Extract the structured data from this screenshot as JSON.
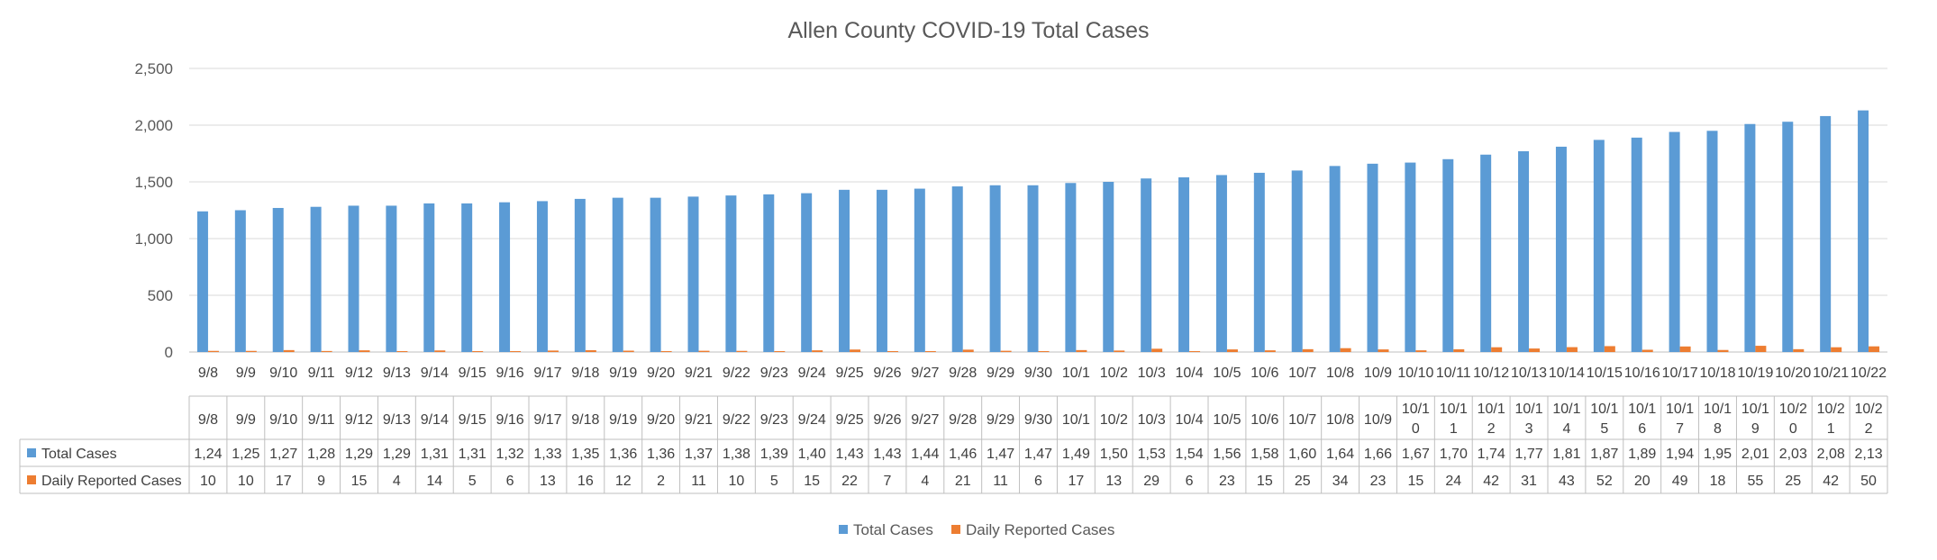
{
  "chart_data": {
    "type": "bar",
    "title": "Allen County COVID-19 Total Cases",
    "xlabel": "",
    "ylabel": "",
    "ylim": [
      0,
      2500
    ],
    "yticks": [
      0,
      500,
      1000,
      1500,
      2000,
      2500
    ],
    "ytick_labels": [
      "0",
      "500",
      "1,000",
      "1,500",
      "2,000",
      "2,500"
    ],
    "grid": true,
    "legend_position": "bottom",
    "categories": [
      "9/8",
      "9/9",
      "9/10",
      "9/11",
      "9/12",
      "9/13",
      "9/14",
      "9/15",
      "9/16",
      "9/17",
      "9/18",
      "9/19",
      "9/20",
      "9/21",
      "9/22",
      "9/23",
      "9/24",
      "9/25",
      "9/26",
      "9/27",
      "9/28",
      "9/29",
      "9/30",
      "10/1",
      "10/2",
      "10/3",
      "10/4",
      "10/5",
      "10/6",
      "10/7",
      "10/8",
      "10/9",
      "10/10",
      "10/11",
      "10/12",
      "10/13",
      "10/14",
      "10/15",
      "10/16",
      "10/17",
      "10/18",
      "10/19",
      "10/20",
      "10/21",
      "10/22"
    ],
    "table_header_labels": [
      "9/8",
      "9/9",
      "9/10",
      "9/11",
      "9/12",
      "9/13",
      "9/14",
      "9/15",
      "9/16",
      "9/17",
      "9/18",
      "9/19",
      "9/20",
      "9/21",
      "9/22",
      "9/23",
      "9/24",
      "9/25",
      "9/26",
      "9/27",
      "9/28",
      "9/29",
      "9/30",
      "10/1",
      "10/2",
      "10/3",
      "10/4",
      "10/5",
      "10/6",
      "10/7",
      "10/8",
      "10/9",
      "10/1\n0",
      "10/1\n1",
      "10/1\n2",
      "10/1\n3",
      "10/1\n4",
      "10/1\n5",
      "10/1\n6",
      "10/1\n7",
      "10/1\n8",
      "10/1\n9",
      "10/2\n0",
      "10/2\n1",
      "10/2\n2"
    ],
    "series": [
      {
        "name": "Total Cases",
        "color": "#5B9BD5",
        "values": [
          1240,
          1250,
          1270,
          1280,
          1290,
          1290,
          1310,
          1310,
          1320,
          1330,
          1350,
          1360,
          1360,
          1370,
          1380,
          1390,
          1400,
          1430,
          1430,
          1440,
          1460,
          1470,
          1470,
          1490,
          1500,
          1530,
          1540,
          1560,
          1580,
          1600,
          1640,
          1660,
          1670,
          1700,
          1740,
          1770,
          1810,
          1870,
          1890,
          1940,
          1950,
          2010,
          2030,
          2080,
          2130
        ],
        "table_labels": [
          "1,24",
          "1,25",
          "1,27",
          "1,28",
          "1,29",
          "1,29",
          "1,31",
          "1,31",
          "1,32",
          "1,33",
          "1,35",
          "1,36",
          "1,36",
          "1,37",
          "1,38",
          "1,39",
          "1,40",
          "1,43",
          "1,43",
          "1,44",
          "1,46",
          "1,47",
          "1,47",
          "1,49",
          "1,50",
          "1,53",
          "1,54",
          "1,56",
          "1,58",
          "1,60",
          "1,64",
          "1,66",
          "1,67",
          "1,70",
          "1,74",
          "1,77",
          "1,81",
          "1,87",
          "1,89",
          "1,94",
          "1,95",
          "2,01",
          "2,03",
          "2,08",
          "2,13"
        ]
      },
      {
        "name": "Daily Reported Cases",
        "color": "#ED7D31",
        "values": [
          10,
          10,
          17,
          9,
          15,
          4,
          14,
          5,
          6,
          13,
          16,
          12,
          2,
          11,
          10,
          5,
          15,
          22,
          7,
          4,
          21,
          11,
          6,
          17,
          13,
          29,
          6,
          23,
          15,
          25,
          34,
          23,
          15,
          24,
          42,
          31,
          43,
          52,
          20,
          49,
          18,
          55,
          25,
          42,
          50
        ],
        "table_labels": [
          "10",
          "10",
          "17",
          "9",
          "15",
          "4",
          "14",
          "5",
          "6",
          "13",
          "16",
          "12",
          "2",
          "11",
          "10",
          "5",
          "15",
          "22",
          "7",
          "4",
          "21",
          "11",
          "6",
          "17",
          "13",
          "29",
          "6",
          "23",
          "15",
          "25",
          "34",
          "23",
          "15",
          "24",
          "42",
          "31",
          "43",
          "52",
          "20",
          "49",
          "18",
          "55",
          "25",
          "42",
          "50"
        ]
      }
    ]
  }
}
